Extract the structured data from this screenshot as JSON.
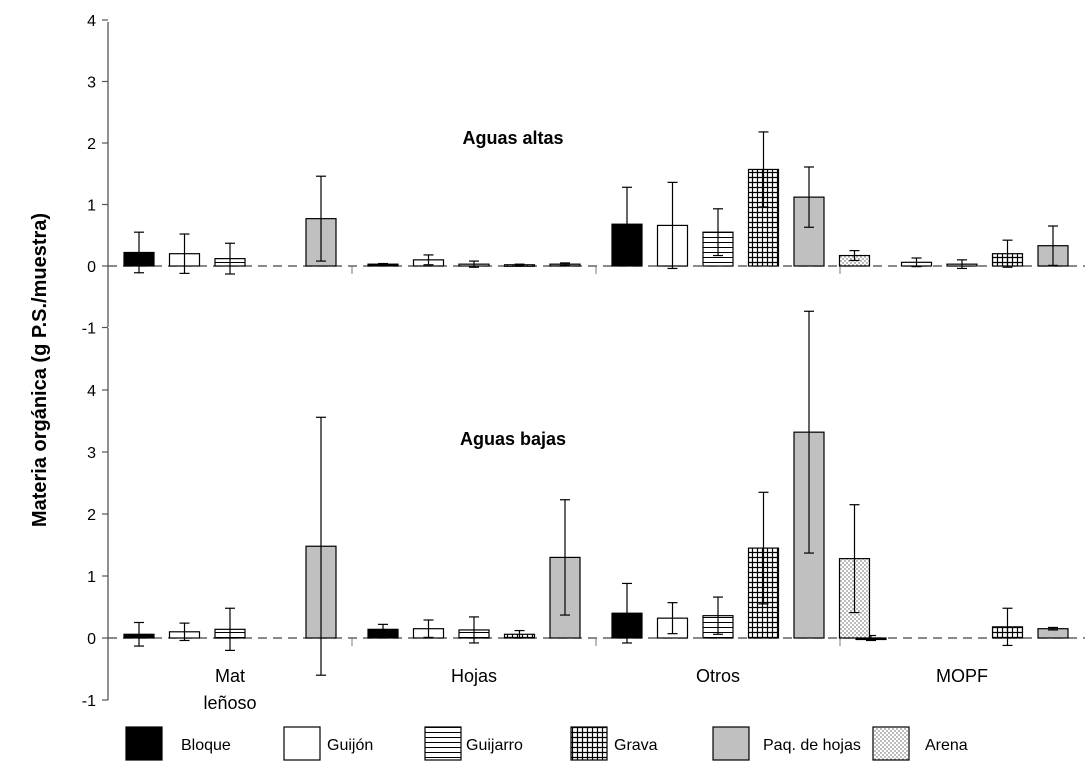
{
  "ylabel": "Materia orgánica (g P.S./muestra)",
  "chart_data": [
    {
      "type": "bar",
      "title": "Aguas altas",
      "categories": [
        "Mat leñoso",
        "Hojas",
        "Otros",
        "MOPF"
      ],
      "ylim": [
        -1,
        4
      ],
      "yticks": [
        "-1",
        "0",
        "1",
        "2",
        "3",
        "4"
      ],
      "series": [
        {
          "name": "Bloque",
          "values": [
            0.22,
            0.03,
            0.68,
            null
          ],
          "errors": [
            0.33,
            0.01,
            0.6,
            null
          ]
        },
        {
          "name": "Guijón",
          "values": [
            0.2,
            0.1,
            0.66,
            0.06
          ],
          "errors": [
            0.32,
            0.08,
            0.7,
            0.07
          ]
        },
        {
          "name": "Guijarro",
          "values": [
            0.12,
            0.03,
            0.55,
            0.03
          ],
          "errors": [
            0.25,
            0.05,
            0.38,
            0.07
          ]
        },
        {
          "name": "Grava",
          "values": [
            null,
            0.02,
            1.57,
            0.2
          ],
          "errors": [
            null,
            0.01,
            0.61,
            0.22
          ]
        },
        {
          "name": "Paq. de hojas",
          "values": [
            0.77,
            0.03,
            1.12,
            0.33
          ],
          "errors": [
            0.69,
            0.02,
            0.49,
            0.32
          ]
        },
        {
          "name": "Arena",
          "values": [
            null,
            null,
            0.17,
            null
          ],
          "errors": [
            null,
            null,
            0.08,
            null
          ]
        }
      ]
    },
    {
      "type": "bar",
      "title": "Aguas bajas",
      "categories": [
        "Mat leñoso",
        "Hojas",
        "Otros",
        "MOPF"
      ],
      "category_labels": [
        [
          "Mat",
          "leñoso"
        ],
        [
          "Hojas"
        ],
        [
          "Otros"
        ],
        [
          "MOPF"
        ]
      ],
      "ylim": [
        -1,
        4
      ],
      "yticks": [
        "-1",
        "0",
        "1",
        "2",
        "3",
        "4"
      ],
      "series": [
        {
          "name": "Bloque",
          "values": [
            0.06,
            0.14,
            0.4,
            0.0
          ],
          "errors": [
            0.19,
            0.08,
            0.48,
            0.04
          ]
        },
        {
          "name": "Guijón",
          "values": [
            0.1,
            0.15,
            0.32,
            null
          ],
          "errors": [
            0.14,
            0.14,
            0.25,
            null
          ]
        },
        {
          "name": "Guijarro",
          "values": [
            0.14,
            0.13,
            0.36,
            null
          ],
          "errors": [
            0.34,
            0.21,
            0.3,
            null
          ]
        },
        {
          "name": "Grava",
          "values": [
            null,
            0.06,
            1.45,
            0.18
          ],
          "errors": [
            null,
            0.06,
            0.9,
            0.3
          ]
        },
        {
          "name": "Paq. de hojas",
          "values": [
            1.48,
            1.3,
            3.32,
            0.15
          ],
          "errors": [
            2.08,
            0.93,
            1.95,
            0.02
          ]
        },
        {
          "name": "Arena",
          "values": [
            null,
            null,
            1.28,
            null
          ],
          "errors": [
            null,
            null,
            0.87,
            null
          ]
        }
      ]
    }
  ],
  "legend": [
    {
      "name": "Bloque",
      "pattern": "solid"
    },
    {
      "name": "Guijón",
      "pattern": "empty"
    },
    {
      "name": "Guijarro",
      "pattern": "hlines"
    },
    {
      "name": "Grava",
      "pattern": "grid"
    },
    {
      "name": "Paq. de hojas",
      "pattern": "gray"
    },
    {
      "name": "Arena",
      "pattern": "dots"
    }
  ],
  "colors": {
    "bloque": "#000000",
    "paquete_de_hojas": "#c0c0c0",
    "axis": "#555555"
  }
}
